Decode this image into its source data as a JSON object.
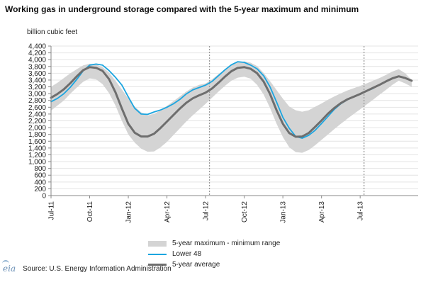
{
  "chart_data": {
    "type": "line",
    "title": "Working gas in underground storage compared with the 5-year maximum and minimum",
    "ylabel": "billion cubic feet",
    "ylim": [
      0,
      4400
    ],
    "yticks": [
      0,
      200,
      400,
      600,
      800,
      1000,
      1200,
      1400,
      1600,
      1800,
      2000,
      2200,
      2400,
      2600,
      2800,
      3000,
      3200,
      3400,
      3600,
      3800,
      4000,
      4200,
      4400
    ],
    "ytick_labels": [
      "0",
      "200",
      "400",
      "600",
      "800",
      "1,000",
      "1,200",
      "1,400",
      "1,600",
      "1,800",
      "2,000",
      "2,200",
      "2,400",
      "2,600",
      "2,800",
      "3,000",
      "3,200",
      "3,400",
      "3,600",
      "3,800",
      "4,000",
      "4,200",
      "4,400"
    ],
    "x_start_month": "Jul-11",
    "x_end_month": "Nov-13",
    "xlim_months": [
      0,
      28.5
    ],
    "xticks": [
      {
        "month": 0,
        "label": "Jul-11"
      },
      {
        "month": 3,
        "label": "Oct-11"
      },
      {
        "month": 6,
        "label": "Jan-12"
      },
      {
        "month": 9,
        "label": "Apr-12"
      },
      {
        "month": 12,
        "label": "Jul-12"
      },
      {
        "month": 15,
        "label": "Oct-12"
      },
      {
        "month": 18,
        "label": "Jan-13"
      },
      {
        "month": 21,
        "label": "Apr-13"
      },
      {
        "month": 24,
        "label": "Jul-13"
      }
    ],
    "year_dividers_month": [
      12.3,
      24.3
    ],
    "grid": "horizontal",
    "legend_position": "bottom",
    "x_months": [
      0,
      0.5,
      1,
      1.5,
      2,
      2.5,
      3,
      3.5,
      4,
      4.5,
      5,
      5.5,
      6,
      6.5,
      7,
      7.5,
      8,
      8.5,
      9,
      9.5,
      10,
      10.5,
      11,
      11.5,
      12,
      12.5,
      13,
      13.5,
      14,
      14.5,
      15,
      15.5,
      16,
      16.5,
      17,
      17.5,
      18,
      18.5,
      19,
      19.5,
      20,
      20.5,
      21,
      21.5,
      22,
      22.5,
      23,
      23.5,
      24,
      24.5,
      25,
      25.5,
      26,
      26.5,
      27,
      27.5,
      28
    ],
    "series": [
      {
        "name": "5-year maximum - minimum range",
        "kind": "band",
        "color": "#d4d4d4",
        "upper": [
          3200,
          3320,
          3460,
          3600,
          3720,
          3830,
          3880,
          3860,
          3780,
          3620,
          3380,
          3120,
          2850,
          2620,
          2450,
          2360,
          2400,
          2520,
          2640,
          2780,
          2920,
          3060,
          3180,
          3260,
          3300,
          3420,
          3570,
          3710,
          3830,
          3920,
          3950,
          3910,
          3810,
          3610,
          3370,
          3110,
          2850,
          2620,
          2510,
          2470,
          2510,
          2610,
          2710,
          2820,
          2920,
          3010,
          3090,
          3160,
          3230,
          3300,
          3380,
          3460,
          3550,
          3650,
          3720,
          3600,
          3400
        ],
        "lower": [
          2500,
          2650,
          2800,
          3000,
          3180,
          3350,
          3450,
          3420,
          3280,
          3020,
          2650,
          2200,
          1800,
          1560,
          1380,
          1290,
          1300,
          1420,
          1580,
          1780,
          1980,
          2180,
          2360,
          2530,
          2700,
          2880,
          3060,
          3230,
          3380,
          3470,
          3500,
          3440,
          3260,
          2980,
          2580,
          2120,
          1720,
          1420,
          1280,
          1260,
          1340,
          1480,
          1640,
          1800,
          1960,
          2110,
          2260,
          2400,
          2540,
          2680,
          2820,
          2970,
          3110,
          3260,
          3380,
          3300,
          3200
        ]
      },
      {
        "name": "Lower 48",
        "kind": "line",
        "color": "#1ba5e0",
        "x_range_months": [
          0,
          25
        ],
        "values": [
          2760,
          2860,
          3000,
          3190,
          3420,
          3670,
          3840,
          3870,
          3840,
          3680,
          3480,
          3250,
          2900,
          2570,
          2400,
          2390,
          2460,
          2520,
          2600,
          2700,
          2830,
          2990,
          3110,
          3180,
          3250,
          3360,
          3530,
          3700,
          3850,
          3940,
          3920,
          3840,
          3730,
          3530,
          3200,
          2760,
          2300,
          1980,
          1740,
          1690,
          1770,
          1920,
          2120,
          2330,
          2540,
          2700,
          2820,
          2910,
          2990,
          3080,
          3150
        ]
      },
      {
        "name": "5-year average",
        "kind": "line",
        "color": "#6e6e6e",
        "x_range_months": [
          0,
          28
        ],
        "values": [
          2880,
          2990,
          3130,
          3310,
          3510,
          3690,
          3780,
          3760,
          3670,
          3430,
          3040,
          2560,
          2110,
          1850,
          1740,
          1740,
          1820,
          1990,
          2180,
          2370,
          2560,
          2730,
          2860,
          2950,
          3030,
          3150,
          3320,
          3500,
          3660,
          3760,
          3780,
          3730,
          3600,
          3360,
          2990,
          2520,
          2110,
          1840,
          1730,
          1740,
          1840,
          2020,
          2210,
          2410,
          2580,
          2720,
          2830,
          2910,
          2990,
          3080,
          3170,
          3260,
          3360,
          3450,
          3510,
          3460,
          3380
        ]
      }
    ]
  },
  "legend": {
    "band_label": "5-year maximum - minimum range",
    "lower48_label": "Lower 48",
    "avg_label": "5-year average"
  },
  "source": {
    "logo_text": "eia",
    "text": "Source:  U.S. Energy Information Administration"
  },
  "colors": {
    "band": "#d4d4d4",
    "lower48": "#1ba5e0",
    "average": "#6e6e6e",
    "grid": "#e4e4e4"
  }
}
